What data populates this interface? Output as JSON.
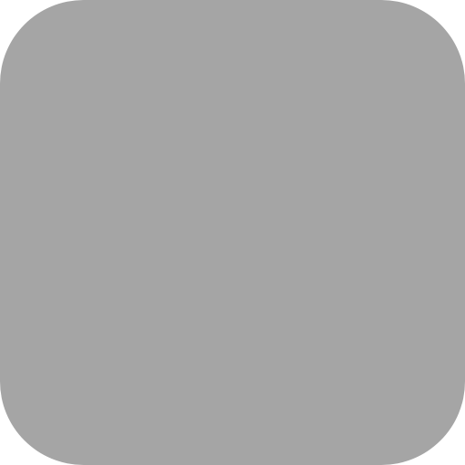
{
  "icon": {
    "name": "app-icon-placeholder",
    "color": "#a5a5a5"
  }
}
